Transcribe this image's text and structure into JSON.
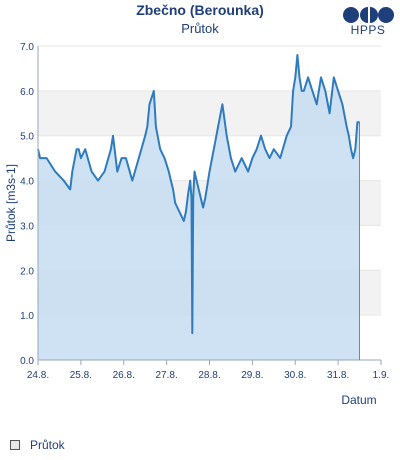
{
  "header": {
    "title": "Zbečno (Berounka)",
    "subtitle": "Průtok",
    "logo_text": "HPPS"
  },
  "legend": {
    "label": "Průtok"
  },
  "colors": {
    "line": "#2f7bbf",
    "fill": "#c6ddf1",
    "band": "#f2f2f2",
    "axis_text": "#1f3f7a"
  },
  "chart_data": {
    "type": "area",
    "title": "Průtok",
    "xlabel": "Datum",
    "ylabel": "Průtok [m3s-1]",
    "ylim": [
      0,
      7
    ],
    "xlim": [
      0,
      8
    ],
    "x_ticks": [
      0,
      1,
      2,
      3,
      4,
      5,
      6,
      7,
      8
    ],
    "x_tick_labels": [
      "24.8.",
      "25.8.",
      "26.8.",
      "27.8.",
      "28.8.",
      "29.8.",
      "30.8.",
      "31.8.",
      "1.9."
    ],
    "y_ticks": [
      0,
      1,
      2,
      3,
      4,
      5,
      6,
      7
    ],
    "y_tick_labels": [
      "0.0",
      "1.0",
      "2.0",
      "3.0",
      "4.0",
      "5.0",
      "6.0",
      "7.0"
    ],
    "grid": "horizontal alternating bands",
    "series": [
      {
        "x": [
          0,
          0.05,
          0.2,
          0.4,
          0.6,
          0.75,
          0.8,
          0.9,
          0.95,
          1.0,
          1.1,
          1.25,
          1.4,
          1.55,
          1.7,
          1.75,
          1.85,
          1.95,
          2.05,
          2.2,
          2.35,
          2.5,
          2.55,
          2.6,
          2.7,
          2.75,
          2.85,
          2.95,
          3.05,
          3.1,
          3.15,
          3.2,
          3.3,
          3.4,
          3.45,
          3.5,
          3.55,
          3.58,
          3.6,
          3.62,
          3.65,
          3.7,
          3.8,
          3.85,
          3.9,
          4.0,
          4.1,
          4.2,
          4.3,
          4.4,
          4.5,
          4.6,
          4.75,
          4.9,
          5.0,
          5.1,
          5.2,
          5.3,
          5.4,
          5.5,
          5.65,
          5.8,
          5.9,
          5.95,
          6.0,
          6.05,
          6.1,
          6.15,
          6.2,
          6.3,
          6.4,
          6.5,
          6.6,
          6.7,
          6.8,
          6.9,
          7.0,
          7.1,
          7.2,
          7.25,
          7.3,
          7.35,
          7.4,
          7.45,
          7.5
        ],
        "values": [
          4.7,
          4.5,
          4.5,
          4.2,
          4.0,
          3.8,
          4.2,
          4.7,
          4.7,
          4.5,
          4.7,
          4.2,
          4.0,
          4.2,
          4.7,
          5.0,
          4.2,
          4.5,
          4.5,
          4.0,
          4.5,
          5.0,
          5.2,
          5.7,
          6.0,
          5.2,
          4.7,
          4.5,
          4.2,
          4.0,
          3.8,
          3.5,
          3.3,
          3.1,
          3.3,
          3.7,
          4.0,
          3.6,
          0.6,
          3.6,
          4.2,
          4.0,
          3.6,
          3.4,
          3.6,
          4.2,
          4.7,
          5.2,
          5.7,
          5.0,
          4.5,
          4.2,
          4.5,
          4.2,
          4.5,
          4.7,
          5.0,
          4.7,
          4.5,
          4.7,
          4.5,
          5.0,
          5.2,
          6.0,
          6.3,
          6.8,
          6.3,
          6.0,
          6.0,
          6.3,
          6.0,
          5.7,
          6.3,
          6.0,
          5.5,
          6.3,
          6.0,
          5.7,
          5.2,
          5.0,
          4.7,
          4.5,
          4.7,
          5.3,
          5.3
        ]
      }
    ]
  }
}
